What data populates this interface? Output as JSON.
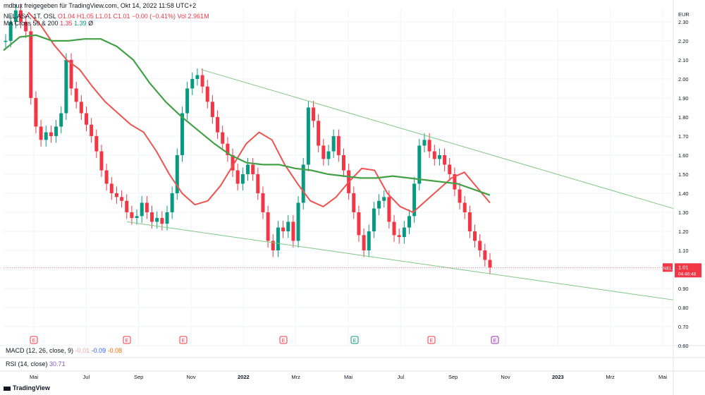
{
  "header": {
    "published_line": "mdbux freigegeben für TradingView.com, Okt 14, 2022 11:58 UTC+2",
    "symbol": "NEL ASA, 1T, OSL",
    "ohlc": "O1.04 H1.05 L1.01 C1.01 −0.00 (−0.41%)",
    "volume": "Vol 2.961M",
    "ma_indicator": "MA Cross 50 & 200",
    "ma50_value": "1.35",
    "ma200_value": "1.39",
    "ma_extra": "Ø"
  },
  "currency": "EUR",
  "price_badge": {
    "symbol": "NEL",
    "price": "1.01",
    "countdown": "04:46:48"
  },
  "macd": {
    "label": "MACD (12, 26, close, 9)",
    "v1": "-0.01",
    "v2": "-0.09",
    "v3": "-0.08"
  },
  "rsi": {
    "label": "RSI (14, close)",
    "value": "30.71"
  },
  "footer": {
    "logo_text": "TradingView"
  },
  "chart_data": {
    "type": "candlestick",
    "currency": "EUR",
    "y_ticks": [
      "2.30",
      "2.20",
      "2.10",
      "2.00",
      "1.90",
      "1.80",
      "1.70",
      "1.60",
      "1.50",
      "1.40",
      "1.30",
      "1.20",
      "1.10",
      "1.00",
      "0.90",
      "0.80",
      "0.70",
      "0.60"
    ],
    "y_range": [
      0.6,
      2.37
    ],
    "x_ticks": [
      "Mai",
      "Jul",
      "Sep",
      "Nov",
      "2022",
      "Mrz",
      "Mai",
      "Jul",
      "Sep",
      "Nov",
      "2023",
      "Mrz",
      "Mai"
    ],
    "last_price": 1.01,
    "earnings_markers": [
      "E",
      "E",
      "E",
      "E",
      "E",
      "E",
      "E"
    ],
    "series": [
      {
        "name": "NEL ASA",
        "role": "close",
        "values": [
          2.2,
          2.3,
          2.36,
          2.3,
          2.25,
          1.9,
          1.75,
          1.68,
          1.72,
          1.7,
          1.75,
          1.82,
          2.1,
          1.95,
          1.88,
          1.82,
          1.76,
          1.7,
          1.62,
          1.52,
          1.45,
          1.4,
          1.38,
          1.36,
          1.3,
          1.27,
          1.28,
          1.35,
          1.3,
          1.25,
          1.27,
          1.24,
          1.3,
          1.4,
          1.6,
          1.82,
          1.95,
          2.0,
          2.02,
          1.96,
          1.88,
          1.8,
          1.72,
          1.66,
          1.6,
          1.52,
          1.45,
          1.5,
          1.55,
          1.5,
          1.4,
          1.3,
          1.15,
          1.1,
          1.22,
          1.2,
          1.25,
          1.15,
          1.35,
          1.55,
          1.85,
          1.78,
          1.65,
          1.58,
          1.62,
          1.7,
          1.6,
          1.52,
          1.4,
          1.3,
          1.18,
          1.1,
          1.2,
          1.32,
          1.36,
          1.38,
          1.25,
          1.18,
          1.17,
          1.22,
          1.28,
          1.45,
          1.65,
          1.68,
          1.62,
          1.58,
          1.6,
          1.55,
          1.5,
          1.42,
          1.35,
          1.3,
          1.2,
          1.15,
          1.1,
          1.05,
          1.01
        ]
      },
      {
        "name": "MA 50",
        "values": [
          2.35,
          2.28,
          2.18,
          2.1,
          2.05,
          1.96,
          1.88,
          1.82,
          1.76,
          1.72,
          1.62,
          1.5,
          1.4,
          1.34,
          1.36,
          1.44,
          1.55,
          1.66,
          1.72,
          1.68,
          1.55,
          1.45,
          1.36,
          1.33,
          1.38,
          1.46,
          1.53,
          1.52,
          1.4,
          1.33,
          1.3,
          1.36,
          1.42,
          1.48,
          1.51,
          1.43,
          1.35
        ]
      },
      {
        "name": "MA 200",
        "values": [
          2.15,
          2.22,
          2.23,
          2.2,
          2.2,
          2.21,
          2.21,
          2.17,
          2.1,
          1.98,
          1.88,
          1.8,
          1.73,
          1.66,
          1.6,
          1.56,
          1.55,
          1.55,
          1.53,
          1.52,
          1.5,
          1.49,
          1.48,
          1.48,
          1.49,
          1.48,
          1.47,
          1.46,
          1.45,
          1.42,
          1.39
        ]
      }
    ],
    "trendlines": [
      {
        "name": "upper",
        "from": 2.05,
        "to": 1.32
      },
      {
        "name": "lower",
        "from": 1.25,
        "to": 0.84
      }
    ],
    "grid": true
  }
}
